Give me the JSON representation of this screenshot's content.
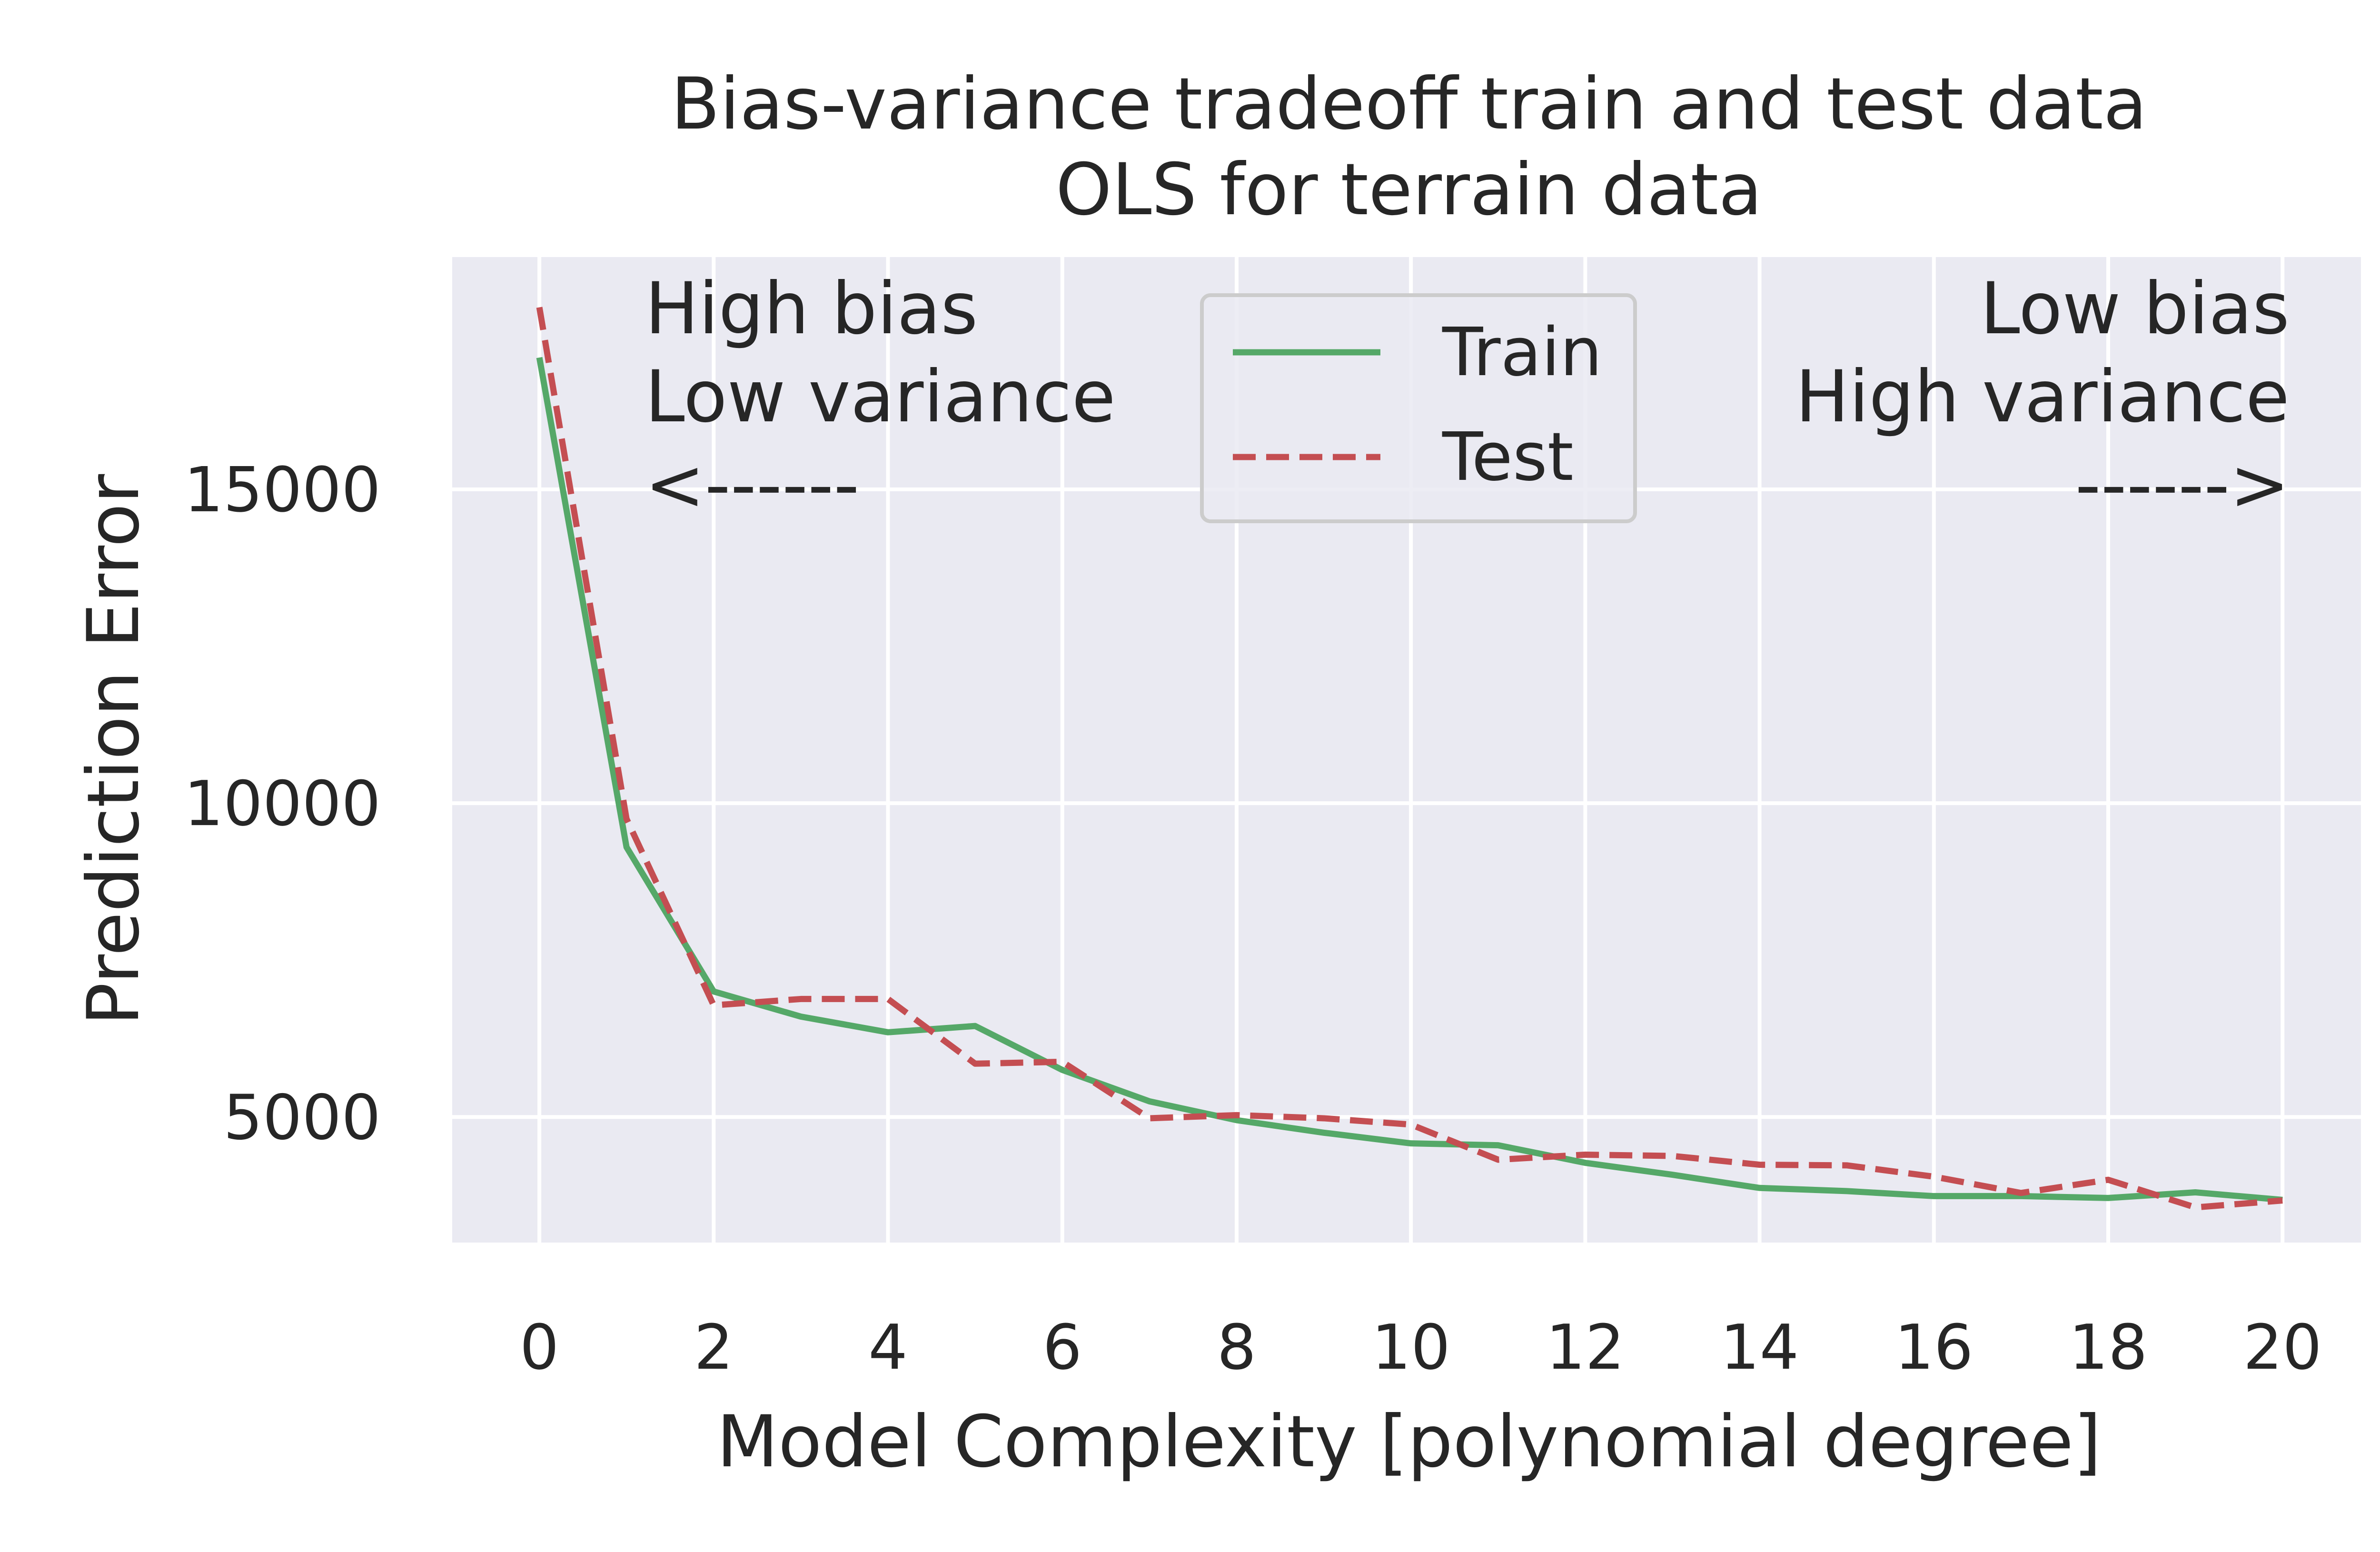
{
  "chart_data": {
    "type": "line",
    "title": [
      "Bias-variance tradeoff train and test data",
      "OLS for terrain data"
    ],
    "xlabel": "Model Complexity [polynomial degree]",
    "ylabel": "Prediction Error",
    "xlim": [
      -1,
      20.9
    ],
    "ylim": [
      3000,
      18700
    ],
    "xticks": [
      0,
      2,
      4,
      6,
      8,
      10,
      12,
      14,
      16,
      18,
      20
    ],
    "yticks": [
      5000,
      10000,
      15000
    ],
    "grid": true,
    "legend_position": "top-center",
    "x": [
      0,
      1,
      2,
      3,
      4,
      5,
      6,
      7,
      8,
      9,
      10,
      11,
      12,
      13,
      14,
      15,
      16,
      17,
      18,
      19,
      20
    ],
    "series": [
      {
        "name": "Train",
        "color": "#55a868",
        "style": "solid",
        "values": [
          17100,
          9300,
          7000,
          6600,
          6350,
          6450,
          5750,
          5250,
          4950,
          4750,
          4580,
          4550,
          4270,
          4080,
          3870,
          3820,
          3740,
          3740,
          3710,
          3800,
          3680
        ]
      },
      {
        "name": "Test",
        "color": "#c44e52",
        "style": "dashed",
        "values": [
          17900,
          9750,
          6780,
          6880,
          6880,
          5850,
          5880,
          4980,
          5030,
          4980,
          4880,
          4320,
          4400,
          4380,
          4240,
          4230,
          4050,
          3790,
          4000,
          3560,
          3670
        ]
      }
    ],
    "annotations": [
      {
        "lines": [
          "High bias",
          "Low variance",
          "<------"
        ],
        "align": "left"
      },
      {
        "lines": [
          "Low bias",
          "High variance",
          "------>"
        ],
        "align": "right"
      }
    ]
  }
}
